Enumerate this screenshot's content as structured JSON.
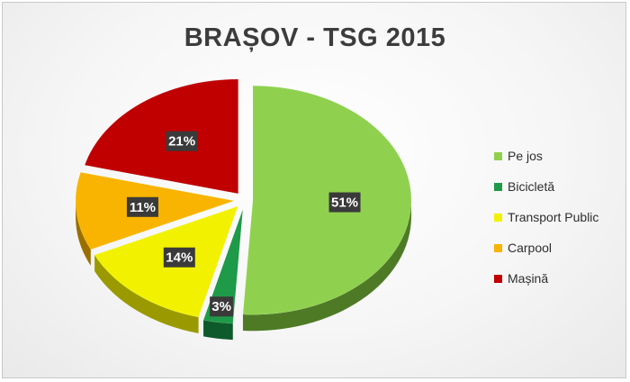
{
  "chart_data": {
    "type": "pie",
    "title": "BRAȘOV - TSG 2015",
    "categories": [
      "Pe jos",
      "Bicicletă",
      "Transport Public",
      "Carpool",
      "Mașină"
    ],
    "values": [
      51,
      3,
      14,
      11,
      21
    ],
    "data_labels": [
      "51%",
      "3%",
      "14%",
      "11%",
      "21%"
    ],
    "colors": [
      "#8fd14f",
      "#1f9a48",
      "#f2f200",
      "#f8b400",
      "#c00000"
    ],
    "side_colors": [
      "#4e7a26",
      "#0e5a2a",
      "#9a9a00",
      "#9a6f00",
      "#6e0000"
    ],
    "legend_position": "right",
    "exploded": true,
    "style_3d": true
  }
}
